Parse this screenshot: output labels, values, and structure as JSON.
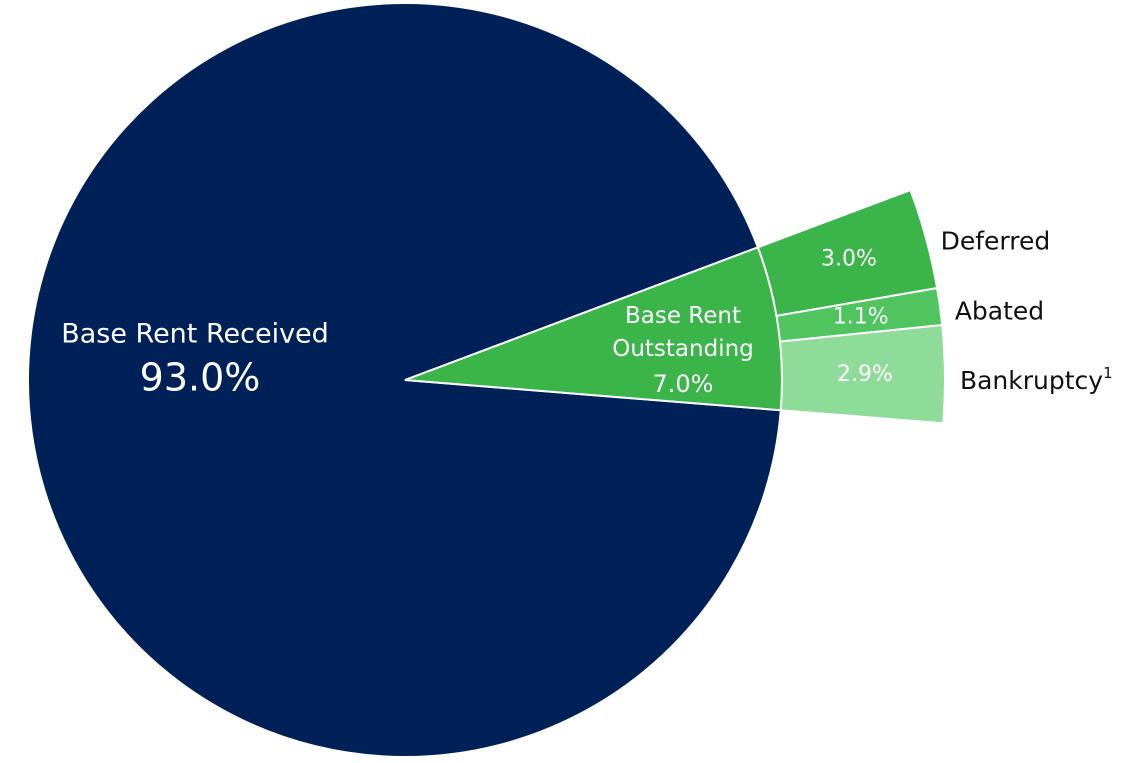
{
  "chart_data": {
    "type": "pie",
    "categories": [
      "Base Rent Received",
      "Base Rent Outstanding"
    ],
    "values": [
      93,
      7
    ],
    "value_labels": [
      "93.0%",
      "7.0%"
    ],
    "colors": [
      "#002157",
      "#3bb44a"
    ],
    "breakout": {
      "categories": [
        "Deferred",
        "Abated",
        "Bankruptcy"
      ],
      "footnotes": [
        null,
        null,
        "1"
      ],
      "values": [
        3,
        1.1,
        2.9
      ],
      "value_labels": [
        "3.0%",
        "1.1%",
        "2.9%"
      ],
      "colors": [
        "#3bb44a",
        "#4fc45f",
        "#8fdc9a"
      ]
    }
  }
}
